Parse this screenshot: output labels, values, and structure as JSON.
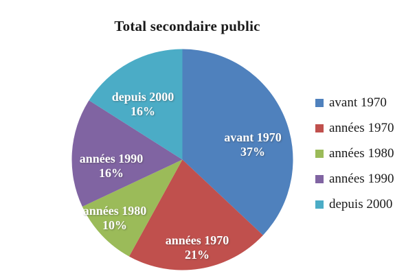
{
  "chart_data": {
    "type": "pie",
    "title": "Total secondaire public",
    "categories": [
      "avant 1970",
      "années 1970",
      "années 1980",
      "années 1990",
      "depuis 2000"
    ],
    "values": [
      37,
      21,
      10,
      16,
      16
    ],
    "value_labels": [
      "37%",
      "21%",
      "10%",
      "16%",
      "16%"
    ],
    "colors": [
      "#4F81BD",
      "#C0504D",
      "#9BBB59",
      "#8064A2",
      "#4BACC6"
    ],
    "unit": "percent",
    "start_angle_deg": 0,
    "direction": "clockwise",
    "legend_position": "right",
    "data_labels": "category-name-and-percentage",
    "background": "#FFFFFF",
    "label_text_color": "#FFFFFF"
  }
}
